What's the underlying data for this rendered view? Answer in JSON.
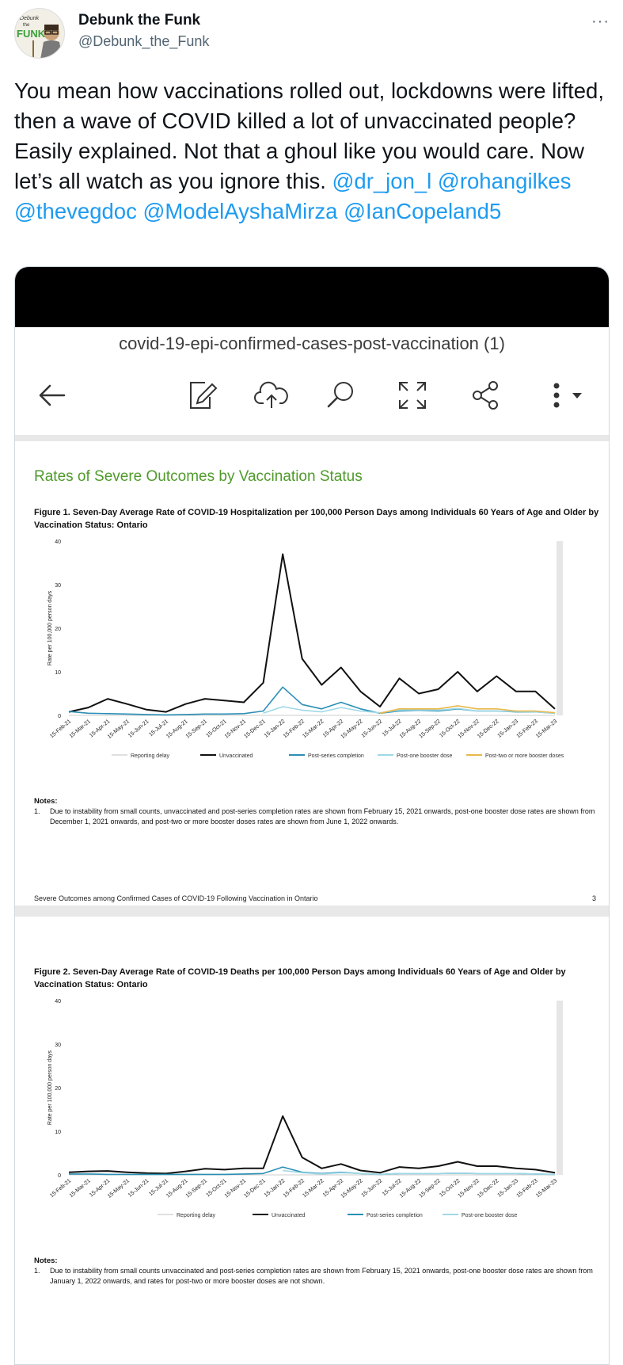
{
  "tweet": {
    "author_name": "Debunk the Funk",
    "author_handle": "@Debunk_the_Funk",
    "avatar_text": "Debunk the FUNK",
    "more_label": "···",
    "text": "You mean how vaccinations rolled out, lockdowns were lifted, then a wave of COVID killed a lot of unvaccinated people? Easily explained. Not that a ghoul like you would care. Now let’s all watch as you ignore this.",
    "mentions": [
      "@dr_jon_l",
      "@rohangilkes",
      "@thevegdoc",
      "@ModelAyshaMirza",
      "@IanCopeland5"
    ]
  },
  "viewer": {
    "title": "covid-19-epi-confirmed-cases-post-vaccination (1)",
    "toolbar": [
      "back-arrow-icon",
      "edit-icon",
      "cloud-upload-icon",
      "search-icon",
      "expand-icon",
      "share-icon",
      "more-vertical-icon"
    ]
  },
  "page1": {
    "section_title": "Rates of Severe Outcomes by Vaccination Status",
    "figure_caption": "Figure 1. Seven-Day Average Rate of COVID-19 Hospitalization per 100,000 Person Days among Individuals 60 Years of Age and Older by Vaccination Status: Ontario",
    "notes_label": "Notes:",
    "note_1": "Due to instability from small counts, unvaccinated and post-series completion rates are shown from February 15, 2021 onwards, post-one booster dose rates are shown from December 1, 2021 onwards, and post-two or more booster doses rates are shown from June 1, 2022 onwards.",
    "footer": "Severe Outcomes among Confirmed Cases of COVID-19 Following Vaccination in Ontario",
    "page_number": "3"
  },
  "page2": {
    "figure_caption": "Figure 2. Seven-Day Average Rate of COVID-19 Deaths per 100,000 Person Days among Individuals 60 Years of Age and Older by Vaccination Status: Ontario",
    "notes_label": "Notes:",
    "note_1": "Due to instability from small counts unvaccinated and post-series completion rates are shown from February 15, 2021 onwards, post-one booster dose rates are shown from January 1, 2022 onwards, and rates for post-two or more booster doses are not shown."
  },
  "chart_data": [
    {
      "type": "line",
      "ylabel": "Rate per 100,000 person days",
      "ylim": [
        0,
        40
      ],
      "yticks": [
        "0",
        "10",
        "20",
        "30",
        "40"
      ],
      "x": [
        "15-Feb-21",
        "15-Mar-21",
        "15-Apr-21",
        "15-May-21",
        "15-Jun-21",
        "15-Jul-21",
        "15-Aug-21",
        "15-Sep-21",
        "15-Oct-21",
        "15-Nov-21",
        "15-Dec-21",
        "15-Jan-22",
        "15-Feb-22",
        "15-Mar-22",
        "15-Apr-22",
        "15-May-22",
        "15-Jun-22",
        "15-Jul-22",
        "15-Aug-22",
        "15-Sep-22",
        "15-Oct-22",
        "15-Nov-22",
        "15-Dec-22",
        "15-Jan-23",
        "15-Feb-23",
        "15-Mar-23"
      ],
      "legend": [
        "Reporting delay",
        "Unvaccinated",
        "Post-series completion",
        "Post-one booster dose",
        "Post-two or more booster doses"
      ],
      "series": [
        {
          "name": "Unvaccinated",
          "color": "#111111",
          "values": [
            0.8,
            1.8,
            3.8,
            2.6,
            1.3,
            0.8,
            2.6,
            3.8,
            3.4,
            3.0,
            7.5,
            37,
            13,
            7.0,
            11,
            5.5,
            2.0,
            8.5,
            5.0,
            6.0,
            10,
            5.5,
            9.0,
            5.5,
            5.5,
            1.5
          ]
        },
        {
          "name": "Post-series completion",
          "color": "#2a8fb5",
          "values": [
            0.9,
            0.5,
            0.4,
            0.3,
            0.2,
            0.1,
            0.2,
            0.3,
            0.3,
            0.4,
            1.0,
            6.5,
            2.5,
            1.5,
            3.0,
            1.5,
            0.5,
            1.0,
            1.2,
            1.0,
            1.5,
            1.0,
            1.0,
            0.8,
            0.8,
            0.5
          ]
        },
        {
          "name": "Post-one booster dose",
          "color": "#9fd8e6",
          "values": [
            null,
            null,
            null,
            null,
            null,
            null,
            null,
            null,
            null,
            null,
            0.5,
            2.0,
            1.2,
            0.8,
            1.8,
            1.0,
            0.6,
            1.2,
            1.3,
            1.2,
            1.6,
            1.0,
            1.0,
            0.9,
            0.8,
            0.5
          ]
        },
        {
          "name": "Post-two or more booster doses",
          "color": "#e8b84a",
          "values": [
            null,
            null,
            null,
            null,
            null,
            null,
            null,
            null,
            null,
            null,
            null,
            null,
            null,
            null,
            null,
            null,
            0.5,
            1.5,
            1.5,
            1.5,
            2.2,
            1.5,
            1.5,
            1.0,
            1.0,
            0.6
          ]
        }
      ]
    },
    {
      "type": "line",
      "ylabel": "Rate per 100,000 person days",
      "ylim": [
        0,
        40
      ],
      "yticks": [
        "0",
        "10",
        "20",
        "30",
        "40"
      ],
      "x": [
        "15-Feb-21",
        "15-Mar-21",
        "15-Apr-21",
        "15-May-21",
        "15-Jun-21",
        "15-Jul-21",
        "15-Aug-21",
        "15-Sep-21",
        "15-Oct-21",
        "15-Nov-21",
        "15-Dec-21",
        "15-Jan-22",
        "15-Feb-22",
        "15-Mar-22",
        "15-Apr-22",
        "15-May-22",
        "15-Jun-22",
        "15-Jul-22",
        "15-Aug-22",
        "15-Sep-22",
        "15-Oct-22",
        "15-Nov-22",
        "15-Dec-22",
        "15-Jan-23",
        "15-Feb-23",
        "15-Mar-23"
      ],
      "legend": [
        "Reporting delay",
        "Unvaccinated",
        "Post-series completion",
        "Post-one booster dose"
      ],
      "series": [
        {
          "name": "Unvaccinated",
          "color": "#111111",
          "values": [
            0.6,
            0.8,
            0.9,
            0.6,
            0.4,
            0.3,
            0.8,
            1.4,
            1.2,
            1.5,
            1.5,
            13.5,
            4.0,
            1.5,
            2.5,
            1.0,
            0.5,
            1.8,
            1.5,
            2.0,
            3.0,
            2.0,
            2.0,
            1.5,
            1.2,
            0.5
          ]
        },
        {
          "name": "Post-series completion",
          "color": "#2a8fb5",
          "values": [
            0.2,
            0.2,
            0.1,
            0.1,
            0.1,
            0.1,
            0.1,
            0.1,
            0.1,
            0.2,
            0.3,
            1.8,
            0.6,
            0.3,
            0.6,
            0.3,
            0.1,
            0.3,
            0.3,
            0.3,
            0.4,
            0.3,
            0.3,
            0.3,
            0.2,
            0.1
          ]
        },
        {
          "name": "Post-one booster dose",
          "color": "#9fd8e6",
          "values": [
            null,
            null,
            null,
            null,
            null,
            null,
            null,
            null,
            null,
            null,
            null,
            1.0,
            0.5,
            0.2,
            0.5,
            0.3,
            0.1,
            0.3,
            0.3,
            0.3,
            0.4,
            0.3,
            0.3,
            0.3,
            0.2,
            0.1
          ]
        }
      ]
    }
  ]
}
